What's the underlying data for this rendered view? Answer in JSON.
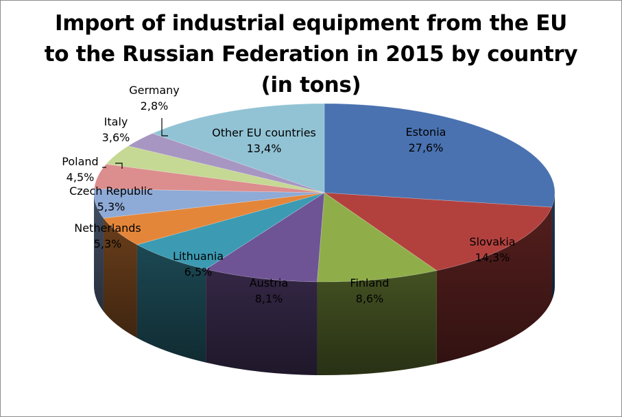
{
  "chart_data": {
    "type": "pie",
    "title_lines": [
      "Import of industrial equipment from the EU",
      "to the Russian Federation in 2015 by country",
      "(in tons)"
    ],
    "title": "Import of industrial equipment from the EU to the Russian Federation in 2015 by country (in tons)",
    "unit": "%",
    "slices": [
      {
        "name": "Estonia",
        "label": "27,6%",
        "value": 27.6,
        "color": "#4a72b0"
      },
      {
        "name": "Slovakia",
        "label": "14,3%",
        "value": 14.3,
        "color": "#b2413e"
      },
      {
        "name": "Finland",
        "label": "8,6%",
        "value": 8.6,
        "color": "#8fae49"
      },
      {
        "name": "Austria",
        "label": "8,1%",
        "value": 8.1,
        "color": "#6f5495"
      },
      {
        "name": "Lithuania",
        "label": "6,5%",
        "value": 6.5,
        "color": "#3c9bb3"
      },
      {
        "name": "Netherlands",
        "label": "5,3%",
        "value": 5.3,
        "color": "#e4863a"
      },
      {
        "name": "Czech Republic",
        "label": "5,3%",
        "value": 5.3,
        "color": "#8eaad6"
      },
      {
        "name": "Poland",
        "label": "4,5%",
        "value": 4.5,
        "color": "#dc8d8d"
      },
      {
        "name": "Italy",
        "label": "3,6%",
        "value": 3.6,
        "color": "#c5d894"
      },
      {
        "name": "Germany",
        "label": "2,8%",
        "value": 2.8,
        "color": "#a796c2"
      },
      {
        "name": "Other EU countries",
        "label": "13,4%",
        "value": 13.4,
        "color": "#92c3d5"
      }
    ],
    "legend": "none",
    "style": "3d-pie"
  }
}
